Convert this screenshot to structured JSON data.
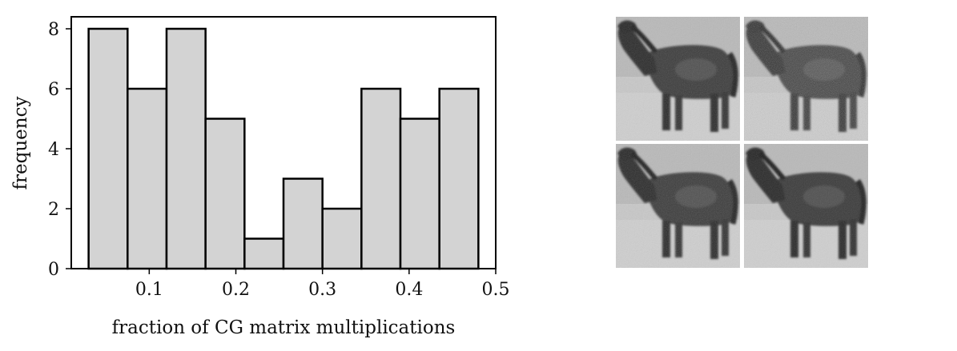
{
  "chart_data": {
    "type": "bar",
    "bin_edges": [
      0.03,
      0.075,
      0.12,
      0.165,
      0.21,
      0.255,
      0.3,
      0.345,
      0.39,
      0.435,
      0.48
    ],
    "values": [
      8,
      6,
      8,
      5,
      1,
      3,
      2,
      6,
      5,
      6
    ],
    "xlim": [
      0.01,
      0.5
    ],
    "ylim": [
      0,
      8.4
    ],
    "xticks": [
      0.1,
      0.2,
      0.3,
      0.4,
      0.5
    ],
    "xtick_labels": [
      "0.1",
      "0.2",
      "0.3",
      "0.4",
      "0.5"
    ],
    "yticks": [
      0,
      2,
      4,
      6,
      8
    ],
    "ytick_labels": [
      "0",
      "2",
      "4",
      "6",
      "8"
    ],
    "xlabel": "fraction of CG matrix multiplications",
    "ylabel": "frequency",
    "grid": false,
    "bar_fill": "#d3d3d3",
    "bar_edge": "#000000"
  },
  "thumbnail_grid": {
    "subject": "grayscale horse image samples",
    "rows": 2,
    "cols": 2
  }
}
